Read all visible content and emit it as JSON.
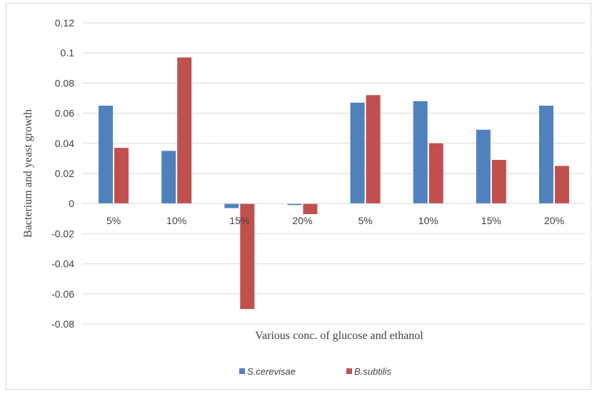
{
  "chart_data": {
    "type": "bar",
    "title": "",
    "xlabel": "Various conc. of glucose and ethanol",
    "ylabel": "Bacterium and yeast growth",
    "categories": [
      "5%",
      "10%",
      "15%",
      "20%",
      "5%",
      "10%",
      "15%",
      "20%"
    ],
    "series": [
      {
        "name": "S.cerevisae",
        "color": "#4f81bd",
        "values": [
          0.065,
          0.035,
          -0.003,
          -0.001,
          0.067,
          0.068,
          0.049,
          0.065
        ]
      },
      {
        "name": "B.subtilis",
        "color": "#c0504d",
        "values": [
          0.037,
          0.097,
          -0.07,
          -0.007,
          0.072,
          0.04,
          0.029,
          0.025
        ]
      }
    ],
    "ylim": [
      -0.08,
      0.12
    ],
    "yticks": [
      "0.12",
      "0.1",
      "0.08",
      "0.06",
      "0.04",
      "0.02",
      "0",
      "-0.02",
      "-0.04",
      "-0.06",
      "-0.08"
    ],
    "ytick_values": [
      0.12,
      0.1,
      0.08,
      0.06,
      0.04,
      0.02,
      0,
      -0.02,
      -0.04,
      -0.06,
      -0.08
    ],
    "grid": true,
    "legend": "bottom"
  }
}
